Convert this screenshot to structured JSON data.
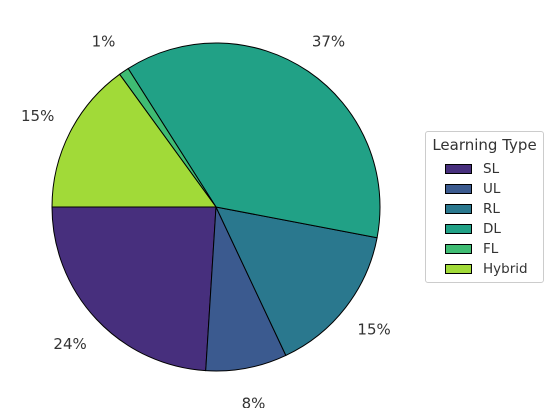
{
  "chart_data": {
    "type": "pie",
    "legend_title": "Learning Type",
    "legend_placement": "right",
    "categories": [
      "SL",
      "UL",
      "RL",
      "DL",
      "FL",
      "Hybrid"
    ],
    "values": [
      24,
      8,
      15,
      37,
      1,
      15
    ],
    "labels": [
      "24%",
      "8%",
      "15%",
      "37%",
      "1%",
      "15%"
    ],
    "colors": [
      "#472f7d",
      "#3b5a8f",
      "#2a788e",
      "#21a186",
      "#3fbc73",
      "#a1da38"
    ],
    "start_angle_deg": 180,
    "direction": "counterclockwise"
  }
}
